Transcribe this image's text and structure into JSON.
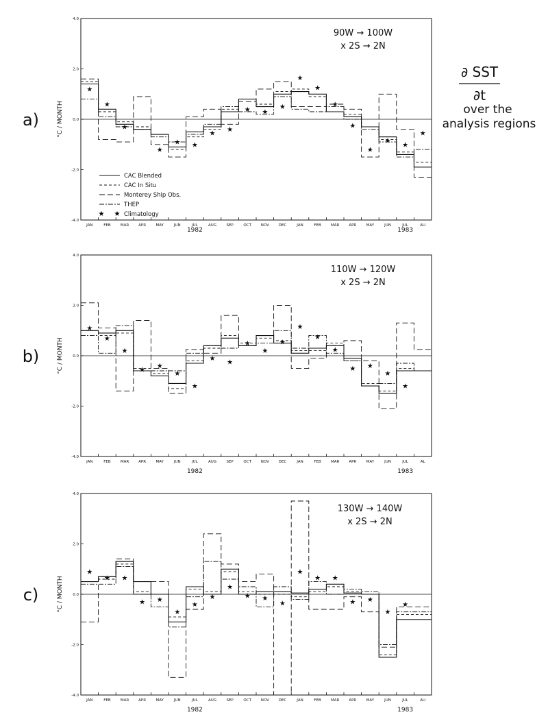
{
  "title": {
    "line1": "∂ SST",
    "line2": "∂t",
    "line3": "over the",
    "line4": "analysis regions"
  },
  "legend": {
    "blended": "CAC Blended",
    "insitu": "CAC In Situ",
    "ship": "Monterey Ship Obs.",
    "thep": "THEP",
    "clim": "Climatology"
  },
  "colors": {
    "ink": "#111111",
    "background": "#ffffff"
  },
  "chart_data": [
    {
      "type": "line",
      "panel": "a)",
      "region_line1": "90W → 100W",
      "region_line2": "x 2S → 2N",
      "ylabel": "°C / MONTH",
      "ylim": [
        -4.0,
        4.0
      ],
      "yticks": [
        "4.0",
        "2.0",
        "0.0",
        "-2.0",
        "-4.0"
      ],
      "categories": [
        "JAN",
        "FEB",
        "MAR",
        "APR",
        "MAY",
        "JUN",
        "JUL",
        "AUG",
        "SEP",
        "OCT",
        "NOV",
        "DEC",
        "JAN",
        "FEB",
        "MAR",
        "APR",
        "MAY",
        "JUN",
        "JUL",
        "AU"
      ],
      "year_labels": [
        "1982",
        "1983"
      ],
      "series": [
        {
          "name": "CAC Blended",
          "style": "solid",
          "values": [
            1.4,
            0.4,
            -0.2,
            -0.4,
            -0.6,
            -1.1,
            -0.5,
            -0.3,
            0.3,
            0.8,
            0.5,
            1.0,
            1.1,
            1.0,
            0.3,
            0.1,
            -0.3,
            -0.7,
            -1.4,
            -1.9
          ]
        },
        {
          "name": "CAC In Situ",
          "style": "dashed",
          "values": [
            1.5,
            0.3,
            -0.1,
            -0.3,
            -0.6,
            -1.2,
            -0.7,
            -0.4,
            0.4,
            0.8,
            0.6,
            1.1,
            1.2,
            0.9,
            0.3,
            0.2,
            -0.3,
            -0.8,
            -1.3,
            -1.7
          ]
        },
        {
          "name": "Monterey Ship Obs.",
          "style": "longdash",
          "values": [
            1.6,
            -0.8,
            -0.9,
            0.9,
            -1.0,
            -1.5,
            0.1,
            0.4,
            -0.2,
            0.7,
            1.2,
            1.5,
            0.5,
            0.5,
            0.6,
            0.4,
            -1.5,
            1.0,
            -0.4,
            -2.3
          ]
        },
        {
          "name": "THEP",
          "style": "dashdot",
          "values": [
            0.8,
            0.1,
            -0.3,
            -0.4,
            -0.7,
            -0.9,
            -0.6,
            -0.2,
            0.5,
            0.3,
            0.2,
            0.9,
            0.4,
            0.3,
            0.5,
            0.0,
            -0.4,
            -0.9,
            -1.5,
            -1.2
          ]
        },
        {
          "name": "Climatology",
          "style": "star",
          "values": [
            1.2,
            0.6,
            -0.3,
            null,
            -1.2,
            -0.9,
            -1.0,
            -0.55,
            -0.4,
            0.4,
            0.3,
            0.5,
            1.65,
            1.25,
            0.6,
            -0.25,
            -1.2,
            -0.85,
            -1.0,
            -0.55
          ]
        }
      ]
    },
    {
      "type": "line",
      "panel": "b)",
      "region_line1": "110W → 120W",
      "region_line2": "x 2S → 2N",
      "ylabel": "°C / MONTH",
      "ylim": [
        -4.0,
        4.0
      ],
      "yticks": [
        "4.0",
        "2.0",
        "0.0",
        "-2.0",
        "-4.0"
      ],
      "categories": [
        "JAN",
        "FEB",
        "MAR",
        "APR",
        "MAY",
        "JUN",
        "JUL",
        "AUG",
        "SEP",
        "OCT",
        "NOV",
        "DEC",
        "JAN",
        "FEB",
        "MAR",
        "APR",
        "MAY",
        "JUN",
        "JUL",
        "AL"
      ],
      "year_labels": [
        "1982",
        "1983"
      ],
      "series": [
        {
          "name": "CAC Blended",
          "style": "solid",
          "values": [
            1.0,
            0.9,
            1.0,
            -0.6,
            -0.8,
            -1.1,
            -0.3,
            0.4,
            0.7,
            0.4,
            0.8,
            0.5,
            0.1,
            0.3,
            0.4,
            -0.1,
            -1.2,
            -1.5,
            -0.6,
            -0.6
          ]
        },
        {
          "name": "CAC In Situ",
          "style": "dashed",
          "values": [
            1.0,
            0.8,
            0.9,
            -0.5,
            -0.7,
            -1.3,
            -0.2,
            0.3,
            0.8,
            0.5,
            0.7,
            0.6,
            0.2,
            0.2,
            0.5,
            -0.2,
            -1.1,
            -1.4,
            -0.5,
            -0.6
          ]
        },
        {
          "name": "Monterey Ship Obs.",
          "style": "longdash",
          "values": [
            2.1,
            1.1,
            -1.4,
            1.4,
            -0.5,
            -1.5,
            0.25,
            0.1,
            1.6,
            0.4,
            0.8,
            2.0,
            -0.5,
            -0.1,
            0.4,
            0.6,
            -0.2,
            -2.1,
            1.3,
            0.25
          ]
        },
        {
          "name": "THEP",
          "style": "dashdot",
          "values": [
            0.8,
            0.1,
            1.2,
            -0.6,
            -0.6,
            -0.6,
            0.1,
            0.4,
            0.3,
            0.4,
            0.5,
            1.0,
            0.3,
            0.8,
            0.1,
            -0.2,
            -1.2,
            -1.1,
            -0.3,
            -0.6
          ]
        },
        {
          "name": "Climatology",
          "style": "star",
          "values": [
            1.1,
            0.7,
            0.2,
            -0.55,
            -0.4,
            -0.7,
            -1.2,
            -0.1,
            -0.25,
            0.5,
            0.2,
            0.55,
            1.15,
            0.75,
            0.25,
            -0.5,
            -0.4,
            -0.7,
            -1.2,
            null
          ]
        }
      ]
    },
    {
      "type": "line",
      "panel": "c)",
      "region_line1": "130W → 140W",
      "region_line2": "x 2S → 2N",
      "ylabel": "°C / MONTH",
      "ylim": [
        -4.0,
        4.0
      ],
      "yticks": [
        "4.0",
        "2.0",
        "0.0",
        "-2.0",
        "-4.0"
      ],
      "categories": [
        "JAN",
        "FEB",
        "MAR",
        "APR",
        "MAY",
        "JUN",
        "JUL",
        "AUG",
        "SEP",
        "OCT",
        "NOV",
        "DEC",
        "JAN",
        "FEB",
        "MAR",
        "APR",
        "MAY",
        "JUN",
        "JUL",
        "AU"
      ],
      "year_labels": [
        "1982",
        "1983"
      ],
      "series": [
        {
          "name": "CAC Blended",
          "style": "solid",
          "values": [
            0.5,
            0.7,
            1.3,
            0.5,
            0.0,
            -1.1,
            0.3,
            0.0,
            1.0,
            0.0,
            0.1,
            0.1,
            0.05,
            0.2,
            0.4,
            0.05,
            0.0,
            -2.5,
            -1.0,
            -1.0
          ]
        },
        {
          "name": "CAC In Situ",
          "style": "dashed",
          "values": [
            0.5,
            0.6,
            1.2,
            0.1,
            0.0,
            -0.9,
            0.2,
            0.1,
            0.9,
            0.1,
            0.0,
            0.0,
            -0.1,
            0.1,
            0.3,
            0.1,
            0.0,
            -2.4,
            -0.8,
            -0.8
          ]
        },
        {
          "name": "Monterey Ship Obs.",
          "style": "longdash",
          "values": [
            -1.1,
            0.7,
            1.4,
            0.0,
            0.5,
            -3.3,
            -0.6,
            2.4,
            1.2,
            0.5,
            0.8,
            -4.0,
            3.7,
            -0.6,
            -0.6,
            -0.1,
            -0.7,
            -2.1,
            -0.5,
            -0.5
          ]
        },
        {
          "name": "THEP",
          "style": "dashdot",
          "values": [
            0.4,
            0.4,
            1.1,
            0.0,
            -0.5,
            -1.3,
            -0.1,
            1.3,
            0.6,
            0.3,
            -0.5,
            0.3,
            -0.2,
            0.5,
            0.0,
            0.2,
            0.1,
            -2.0,
            -0.7,
            -0.7
          ]
        },
        {
          "name": "Climatology",
          "style": "star",
          "values": [
            0.9,
            0.65,
            0.65,
            -0.3,
            -0.2,
            -0.7,
            -0.4,
            -0.1,
            0.3,
            -0.05,
            -0.15,
            -0.35,
            0.9,
            0.65,
            0.65,
            -0.3,
            -0.2,
            -0.7,
            -0.4,
            null
          ]
        }
      ]
    }
  ]
}
